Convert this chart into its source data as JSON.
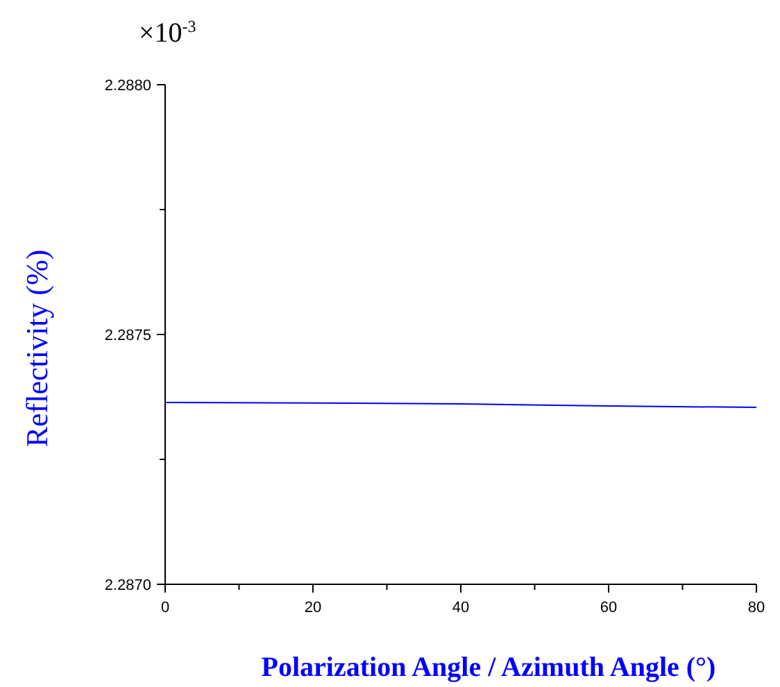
{
  "chart_data": {
    "type": "line",
    "xlabel": "Polarization Angle / Azimuth Angle (°)",
    "ylabel": "Reflectivity (%)",
    "annotations": [
      "×10$^{-3}$"
    ],
    "x": [
      0,
      20,
      40,
      60,
      80
    ],
    "series": [
      {
        "color": "#0000ff",
        "values": [
          2.287364,
          2.287363,
          2.287361,
          2.287357,
          2.287354
        ]
      }
    ],
    "xlim": [
      0,
      80
    ],
    "ylim": [
      2.287,
      2.288
    ],
    "xticks": [
      0,
      {
        "value": 10,
        "label": null
      },
      20,
      {
        "value": 30,
        "label": null
      },
      40,
      {
        "value": 50,
        "label": null
      },
      60,
      {
        "value": 70,
        "label": null
      },
      80
    ],
    "yticks": [
      {
        "value": 2.287,
        "label": "2.2870"
      },
      {
        "value": 2.28725,
        "label": null
      },
      {
        "value": 2.2875,
        "label": "2.2875"
      },
      {
        "value": 2.28775,
        "label": null
      },
      {
        "value": 2.288,
        "label": "2.2880"
      }
    ],
    "marker": "none",
    "line_style": "solid"
  }
}
